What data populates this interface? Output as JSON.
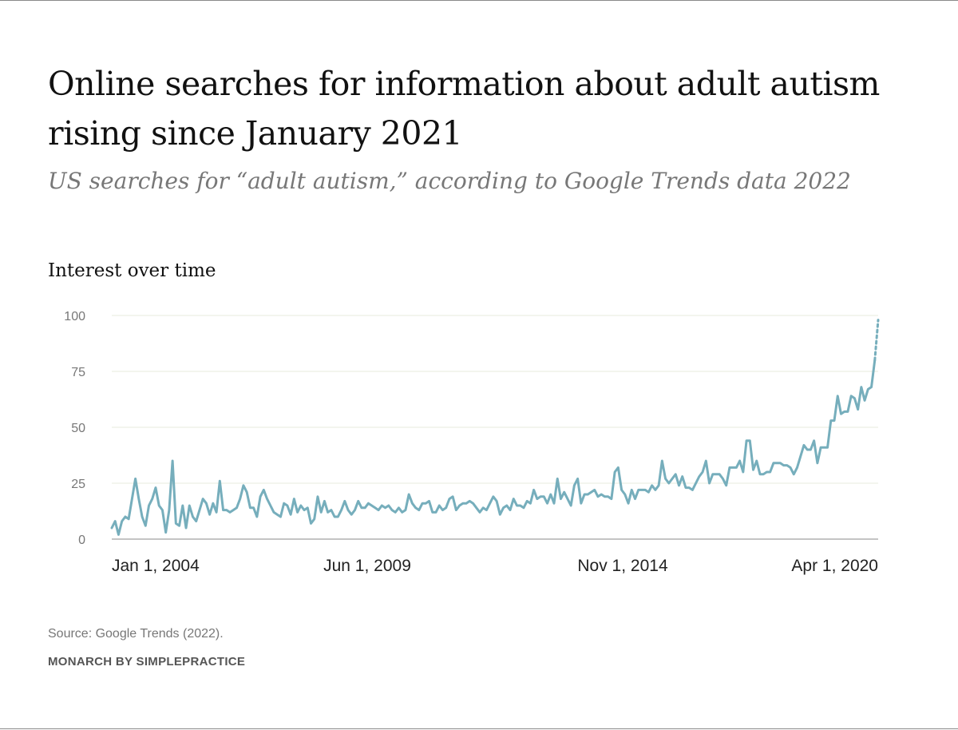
{
  "header": {
    "title": "Online searches for information about adult autism rising since January 2021",
    "subtitle": "US searches for “adult autism,” according to Google Trends data 2022"
  },
  "footer": {
    "source": "Source: Google Trends (2022).",
    "brand": "MONARCH BY SIMPLEPRACTICE"
  },
  "colors": {
    "line": "#76aebc",
    "grid": "#e7ebdc",
    "axis": "#8a8a8a"
  },
  "chart_data": {
    "type": "line",
    "title": "Interest over time",
    "xlabel": "",
    "ylabel": "",
    "ylim": [
      0,
      100
    ],
    "yticks": [
      0,
      25,
      50,
      75,
      100
    ],
    "xticks": [
      "Jan 1, 2004",
      "Jun 1, 2009",
      "Nov 1, 2014",
      "Apr 1, 2020"
    ],
    "grid": true,
    "legend": "none",
    "x_start": "Jan 2004",
    "x_step": "1 month",
    "x_end": "Aug 2022",
    "partial_last_point": true,
    "series": [
      {
        "values": [
          5,
          8,
          2,
          8,
          10,
          9,
          18,
          27,
          18,
          10,
          6,
          15,
          18,
          23,
          15,
          13,
          3,
          13,
          35,
          7,
          6,
          15,
          5,
          15,
          10,
          8,
          13,
          18,
          16,
          11,
          16,
          12,
          26,
          13,
          13,
          12,
          13,
          14,
          18,
          24,
          21,
          14,
          14,
          10,
          19,
          22,
          18,
          15,
          12,
          11,
          10,
          16,
          15,
          11,
          18,
          12,
          15,
          13,
          14,
          7,
          9,
          19,
          12,
          17,
          12,
          13,
          10,
          10,
          13,
          17,
          13,
          11,
          13,
          17,
          14,
          14,
          16,
          15,
          14,
          13,
          15,
          14,
          15,
          13,
          12,
          14,
          12,
          13,
          20,
          16,
          14,
          13,
          16,
          16,
          17,
          12,
          12,
          15,
          13,
          14,
          18,
          19,
          13,
          15,
          16,
          16,
          17,
          16,
          14,
          12,
          14,
          13,
          16,
          19,
          17,
          11,
          14,
          15,
          13,
          18,
          15,
          15,
          14,
          17,
          16,
          22,
          18,
          19,
          19,
          16,
          20,
          16,
          27,
          18,
          21,
          18,
          15,
          24,
          27,
          16,
          20,
          20,
          21,
          22,
          19,
          20,
          19,
          19,
          18,
          30,
          32,
          22,
          20,
          16,
          22,
          18,
          22,
          22,
          22,
          21,
          24,
          22,
          24,
          35,
          27,
          25,
          27,
          29,
          24,
          28,
          23,
          23,
          22,
          25,
          28,
          30,
          35,
          25,
          29,
          29,
          29,
          27,
          24,
          32,
          32,
          32,
          35,
          30,
          44,
          44,
          31,
          35,
          29,
          29,
          30,
          30,
          34,
          34,
          34,
          33,
          33,
          32,
          29,
          32,
          37,
          42,
          40,
          40,
          44,
          34,
          41,
          41,
          41,
          53,
          53,
          64,
          56,
          57,
          57,
          64,
          63,
          58,
          68,
          62,
          67,
          68,
          80,
          98
        ]
      }
    ]
  }
}
